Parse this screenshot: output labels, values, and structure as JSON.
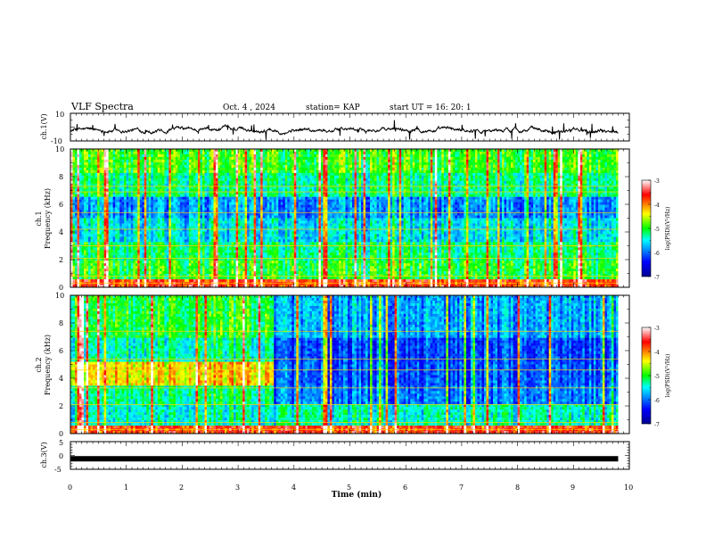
{
  "header": {
    "title": "VLF Spectra",
    "date": "Oct. 4  , 2024",
    "station": "station= KAP",
    "start": "start  UT  =   16: 20: 1"
  },
  "chart_data": [
    {
      "type": "line",
      "title": "VLF Spectra",
      "ylabel": "ch.1(V)",
      "xlim": [
        0,
        10
      ],
      "ylim": [
        -10,
        10
      ],
      "yticks": [
        "10",
        "-10"
      ],
      "series": [
        {
          "color": "#000000",
          "approx_mean": -2,
          "approx_range": [
            -8,
            6
          ]
        }
      ]
    },
    {
      "type": "heatmap",
      "ylabel": "ch.1\nFrequency (kHz)",
      "ylabel_top": "ch.1",
      "ylabel_bottom": "Frequency (kHz)",
      "xlim": [
        0,
        9.8
      ],
      "ylim": [
        0,
        10
      ],
      "yticks": [
        "0",
        "2",
        "4",
        "6",
        "8",
        "10"
      ],
      "colorbar": {
        "label": "log(PSD)(V²/Hz)",
        "range": [
          -7,
          -3
        ],
        "ticks": [
          "-3",
          "-4",
          "-5",
          "-6",
          "-7"
        ]
      }
    },
    {
      "type": "heatmap",
      "ylabel": "ch.2\nFrequency (kHz)",
      "ylabel_top": "ch.2",
      "ylabel_bottom": "Frequency (kHz)",
      "xlim": [
        0,
        9.8
      ],
      "ylim": [
        0,
        10
      ],
      "yticks": [
        "0",
        "2",
        "4",
        "6",
        "8",
        "10"
      ],
      "change_time_min": 3.65,
      "colorbar": {
        "label": "log(PSD)(V²/Hz)",
        "range": [
          -7,
          -3
        ],
        "ticks": [
          "-3",
          "-4",
          "-5",
          "-6",
          "-7"
        ]
      }
    },
    {
      "type": "line",
      "ylabel": "ch.3(V)",
      "xlabel": "Time  (min)",
      "xlim": [
        0,
        10
      ],
      "ylim": [
        -5,
        5
      ],
      "yticks": [
        "5",
        "0",
        "-5"
      ],
      "xticks": [
        "0",
        "1",
        "2",
        "3",
        "4",
        "5",
        "6",
        "7",
        "8",
        "9",
        "10"
      ],
      "series": [
        {
          "color": "#000000",
          "value": -1.2
        }
      ]
    }
  ]
}
